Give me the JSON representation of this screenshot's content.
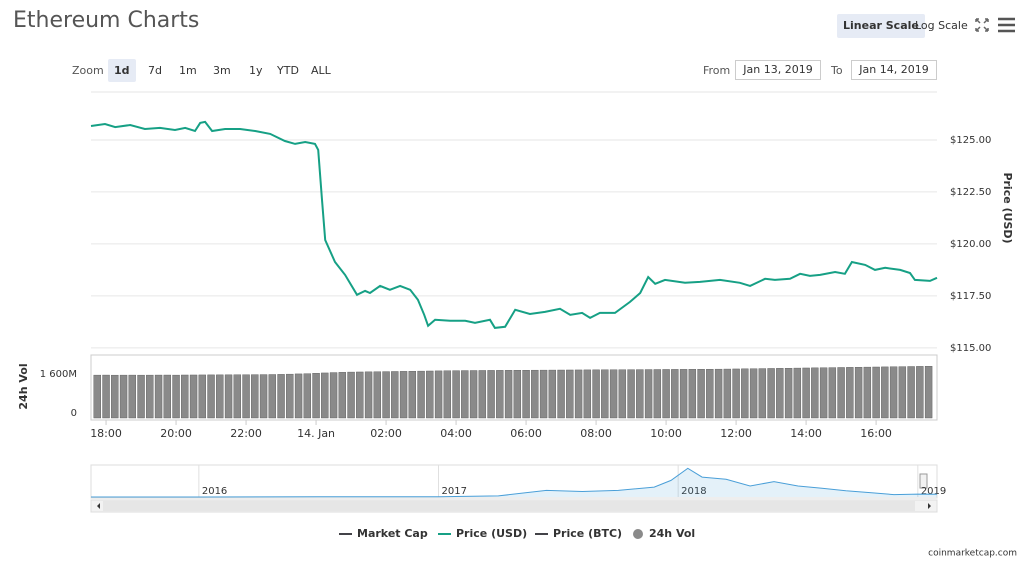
{
  "header": {
    "title": "Ethereum Charts",
    "scale_buttons": [
      "Linear Scale",
      "Log Scale"
    ],
    "active_scale": 0
  },
  "zoom": {
    "label": "Zoom",
    "options": [
      "1d",
      "7d",
      "1m",
      "3m",
      "1y",
      "YTD",
      "ALL"
    ],
    "active": 0
  },
  "range": {
    "from_label": "From",
    "from": "Jan 13, 2019",
    "to_label": "To",
    "to": "Jan 14, 2019"
  },
  "legend": {
    "items": [
      {
        "name": "Market Cap",
        "color": "#434348"
      },
      {
        "name": "Price (BTC)",
        "color": "#434348"
      }
    ],
    "active_text_color": "#3d8fd1",
    "inactive_text_color": "#333333"
  },
  "footer": "coinmarketcap.com",
  "chart_data": [
    {
      "type": "line",
      "ylabel": "Price (USD)",
      "x": [
        17.57,
        17.97,
        18.26,
        18.69,
        19.11,
        19.54,
        19.97,
        20.26,
        20.54,
        20.69,
        20.83,
        21.03,
        21.4,
        21.83,
        22.26,
        22.69,
        23.11,
        23.4,
        23.69,
        23.97,
        24.06,
        24.17,
        24.26,
        24.54,
        24.83,
        25.17,
        25.4,
        25.54,
        25.83,
        26.11,
        26.4,
        26.69,
        26.91,
        27.09,
        27.2,
        27.4,
        27.83,
        28.26,
        28.54,
        28.97,
        29.11,
        29.4,
        29.69,
        30.11,
        30.54,
        30.97,
        31.26,
        31.6,
        31.83,
        32.11,
        32.54,
        32.97,
        33.26,
        33.49,
        33.69,
        33.97,
        34.54,
        34.97,
        35.54,
        36.11,
        36.4,
        36.83,
        37.11,
        37.54,
        37.83,
        38.11,
        38.4,
        38.83,
        39.11,
        39.31,
        39.69,
        39.97,
        40.26,
        40.69,
        40.97,
        41.11,
        41.54,
        41.74
      ],
      "series": [
        {
          "name": "Price (USD)",
          "color": "#16a085",
          "values": [
            125.67,
            125.77,
            125.62,
            125.72,
            125.53,
            125.58,
            125.48,
            125.58,
            125.43,
            125.82,
            125.87,
            125.43,
            125.53,
            125.53,
            125.43,
            125.29,
            124.95,
            124.81,
            124.9,
            124.81,
            124.52,
            122.12,
            120.19,
            119.13,
            118.51,
            117.55,
            117.74,
            117.64,
            117.98,
            117.79,
            117.98,
            117.79,
            117.31,
            116.59,
            116.06,
            116.35,
            116.3,
            116.3,
            116.2,
            116.35,
            115.96,
            116.01,
            116.83,
            116.63,
            116.73,
            116.88,
            116.59,
            116.68,
            116.44,
            116.68,
            116.68,
            117.21,
            117.64,
            118.41,
            118.08,
            118.27,
            118.13,
            118.17,
            118.27,
            118.13,
            117.98,
            118.32,
            118.27,
            118.32,
            118.56,
            118.46,
            118.51,
            118.65,
            118.56,
            119.13,
            118.99,
            118.75,
            118.85,
            118.75,
            118.6,
            118.27,
            118.22,
            118.37
          ]
        }
      ],
      "xlim": [
        17.57,
        41.74
      ],
      "ylim": [
        114.8,
        127.5
      ],
      "yticks": [
        {
          "value": 115,
          "label": "$115.00"
        },
        {
          "value": 117.5,
          "label": "$117.50"
        },
        {
          "value": 120,
          "label": "$120.00"
        },
        {
          "value": 122.5,
          "label": "$122.50"
        },
        {
          "value": 125,
          "label": "$125.00"
        }
      ],
      "grid": true
    },
    {
      "type": "bar",
      "ylabel": "24h Vol",
      "x": [
        17.75,
        18,
        18.25,
        18.5,
        18.75,
        19,
        19.25,
        19.5,
        19.75,
        20,
        20.25,
        20.5,
        20.75,
        21,
        21.25,
        21.5,
        21.75,
        22,
        22.25,
        22.5,
        22.75,
        23,
        23.25,
        23.5,
        23.75,
        24,
        24.25,
        24.5,
        24.75,
        25,
        25.25,
        25.5,
        25.75,
        26,
        26.25,
        26.5,
        26.75,
        27,
        27.25,
        27.5,
        27.75,
        28,
        28.25,
        28.5,
        28.75,
        29,
        29.25,
        29.5,
        29.75,
        30,
        30.25,
        30.5,
        30.75,
        31,
        31.25,
        31.5,
        31.75,
        32,
        32.25,
        32.5,
        32.75,
        33,
        33.25,
        33.5,
        33.75,
        34,
        34.25,
        34.5,
        34.75,
        35,
        35.25,
        35.5,
        35.75,
        36,
        36.25,
        36.5,
        36.75,
        37,
        37.25,
        37.5,
        37.75,
        38,
        38.25,
        38.5,
        38.75,
        39,
        39.25,
        39.5,
        39.75,
        40,
        40.25,
        40.5,
        40.75,
        41,
        41.25,
        41.5
      ],
      "series": [
        {
          "name": "24h Vol",
          "color": "#8a8a8a",
          "values": [
            1770,
            1772,
            1768,
            1770,
            1771,
            1769,
            1770,
            1772,
            1773,
            1770,
            1775,
            1776,
            1778,
            1780,
            1781,
            1782,
            1785,
            1787,
            1790,
            1792,
            1795,
            1800,
            1810,
            1820,
            1830,
            1845,
            1860,
            1875,
            1885,
            1895,
            1900,
            1905,
            1910,
            1915,
            1920,
            1925,
            1930,
            1935,
            1940,
            1945,
            1950,
            1955,
            1958,
            1960,
            1962,
            1964,
            1966,
            1968,
            1970,
            1972,
            1974,
            1976,
            1978,
            1980,
            1982,
            1984,
            1986,
            1988,
            1990,
            1992,
            1994,
            1996,
            1998,
            2000,
            2002,
            2004,
            2006,
            2008,
            2010,
            2012,
            2014,
            2016,
            2020,
            2025,
            2030,
            2035,
            2040,
            2045,
            2050,
            2055,
            2060,
            2065,
            2070,
            2075,
            2080,
            2085,
            2090,
            2095,
            2100,
            2105,
            2110,
            2115,
            2120,
            2125,
            2130,
            2135
          ]
        }
      ],
      "xlim": [
        17.57,
        41.74
      ],
      "ylim": [
        0,
        2600
      ],
      "yticks": [
        0,
        {
          "value": 1600,
          "label": "1 600M"
        }
      ],
      "xticks": [
        {
          "value": 18,
          "label": "18:00"
        },
        {
          "value": 20,
          "label": "20:00"
        },
        {
          "value": 22,
          "label": "22:00"
        },
        {
          "value": 24,
          "label": "14. Jan"
        },
        {
          "value": 26,
          "label": "02:00"
        },
        {
          "value": 28,
          "label": "04:00"
        },
        {
          "value": 30,
          "label": "06:00"
        },
        {
          "value": 32,
          "label": "08:00"
        },
        {
          "value": 34,
          "label": "10:00"
        },
        {
          "value": 36,
          "label": "12:00"
        },
        {
          "value": 38,
          "label": "14:00"
        },
        {
          "value": 40,
          "label": "16:00"
        }
      ],
      "grid": false
    },
    {
      "type": "area",
      "x": [
        2015.55,
        2016,
        2016.5,
        2017,
        2017.25,
        2017.45,
        2017.6,
        2017.75,
        2017.9,
        2017.97,
        2018.04,
        2018.1,
        2018.2,
        2018.3,
        2018.4,
        2018.5,
        2018.6,
        2018.7,
        2018.8,
        2018.9,
        2019,
        2019.08
      ],
      "series": [
        {
          "color": "#4a9fd8",
          "values": [
            1,
            1,
            12,
            8,
            50,
            300,
            250,
            300,
            450,
            750,
            1300,
            900,
            800,
            500,
            700,
            500,
            400,
            280,
            200,
            110,
            130,
            125
          ]
        }
      ],
      "xlim": [
        2015.55,
        2019.08
      ],
      "ylim": [
        0,
        1450
      ],
      "xticks": [
        2016,
        2017,
        2018,
        2019
      ],
      "grid": true
    }
  ]
}
